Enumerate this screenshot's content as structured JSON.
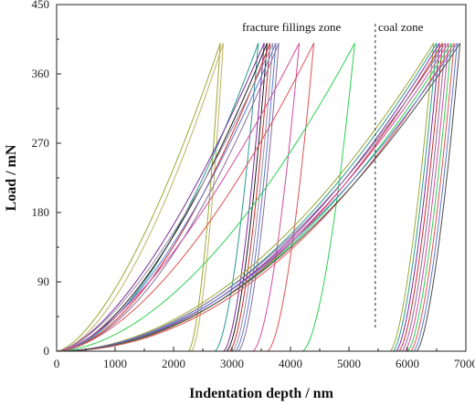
{
  "chart_data": {
    "type": "line",
    "title": "",
    "xlabel": "Indentation depth / nm",
    "ylabel": "Load / mN",
    "xlim": [
      0,
      7000
    ],
    "ylim": [
      0,
      450
    ],
    "xticks": [
      0,
      1000,
      2000,
      3000,
      4000,
      5000,
      6000,
      7000
    ],
    "yticks": [
      0,
      90,
      180,
      270,
      360,
      450
    ],
    "xtick_labels": [
      "0",
      "1000",
      "2000",
      "3000",
      "4000",
      "5000",
      "6000",
      "7000"
    ],
    "ytick_labels": [
      "0",
      "90",
      "180",
      "270",
      "360",
      "450"
    ],
    "grid": false,
    "annotations": [
      {
        "text": "fracture fillings zone",
        "x": 4300,
        "y": 425
      },
      {
        "text": "coal zone",
        "x": 6000,
        "y": 425
      }
    ],
    "boundary_x": 5450,
    "series_colors": [
      "#9aa832",
      "#2a9a8f",
      "#7a2a9a",
      "#cc2a2a",
      "#8a6a9a",
      "#d04aa0",
      "#2ad050",
      "#e05050",
      "#5a7ad0",
      "#4a4a4a",
      "#b0a040",
      "#30b0c0",
      "#707070",
      "#1a1a1a",
      "#9a60c0",
      "#40a060"
    ],
    "peak_load": 400,
    "fracture_curves": [
      {
        "loading_end": 2800,
        "unloading_start": 2250,
        "color": "#9aa832"
      },
      {
        "loading_end": 2850,
        "unloading_start": 2300,
        "color": "#c0b060"
      },
      {
        "loading_end": 3450,
        "unloading_start": 2700,
        "color": "#2a9a8f"
      },
      {
        "loading_end": 3550,
        "unloading_start": 2850,
        "color": "#7a2a9a"
      },
      {
        "loading_end": 3600,
        "unloading_start": 2900,
        "color": "#1a1a1a"
      },
      {
        "loading_end": 3650,
        "unloading_start": 2950,
        "color": "#cc2a2a"
      },
      {
        "loading_end": 3700,
        "unloading_start": 3000,
        "color": "#9a8aa0"
      },
      {
        "loading_end": 3750,
        "unloading_start": 3050,
        "color": "#5a7ad0"
      },
      {
        "loading_end": 3800,
        "unloading_start": 3100,
        "color": "#8a6a9a"
      },
      {
        "loading_end": 4150,
        "unloading_start": 3350,
        "color": "#d04aa0"
      },
      {
        "loading_end": 4400,
        "unloading_start": 3600,
        "color": "#e05050"
      },
      {
        "loading_end": 5100,
        "unloading_start": 4200,
        "color": "#2ad050"
      }
    ],
    "coal_curves": [
      {
        "loading_end": 6450,
        "unloading_start": 5700
      },
      {
        "loading_end": 6500,
        "unloading_start": 5750
      },
      {
        "loading_end": 6550,
        "unloading_start": 5800
      },
      {
        "loading_end": 6600,
        "unloading_start": 5850
      },
      {
        "loading_end": 6650,
        "unloading_start": 5900
      },
      {
        "loading_end": 6700,
        "unloading_start": 5950
      },
      {
        "loading_end": 6750,
        "unloading_start": 6000
      },
      {
        "loading_end": 6800,
        "unloading_start": 6050
      },
      {
        "loading_end": 6850,
        "unloading_start": 6100
      },
      {
        "loading_end": 6900,
        "unloading_start": 6150
      }
    ]
  }
}
